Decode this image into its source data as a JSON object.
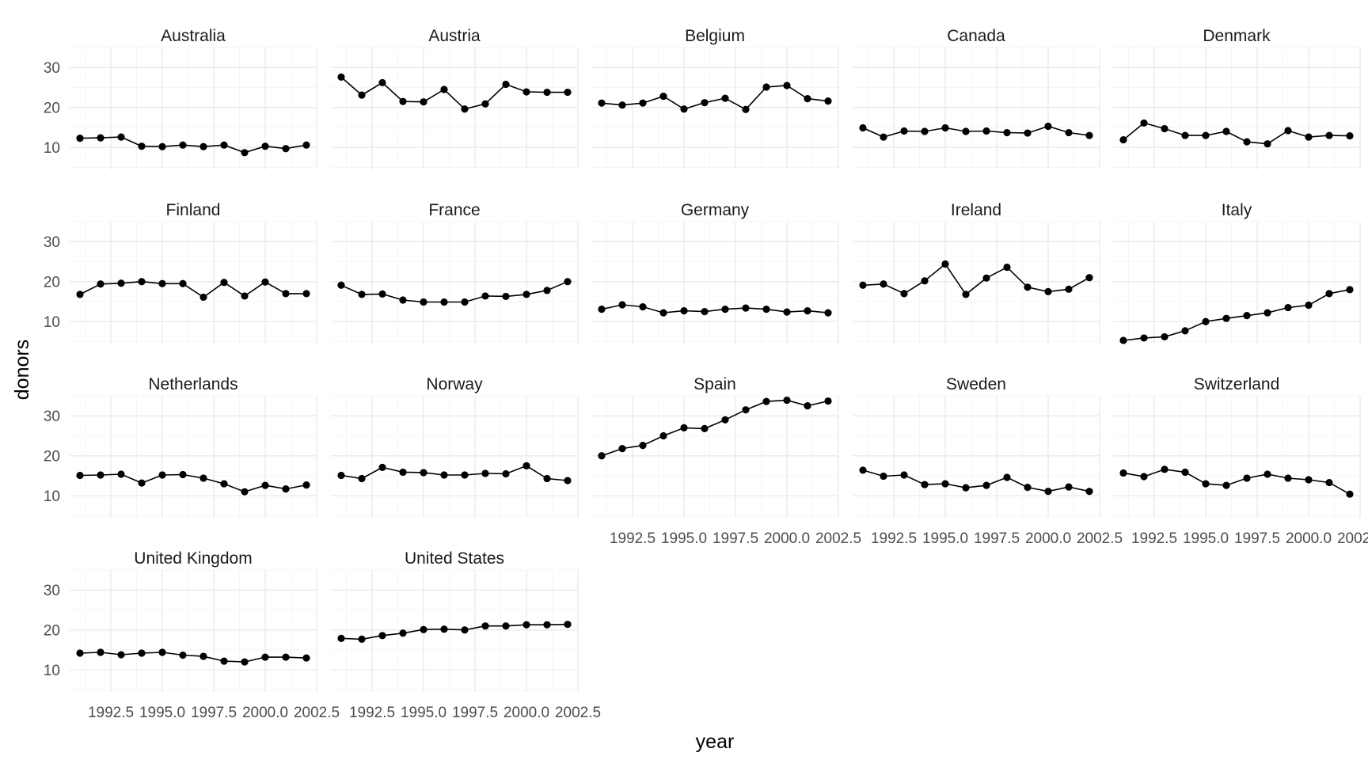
{
  "chart_data": {
    "type": "line",
    "facet_layout": "wrap 5 columns",
    "xlabel": "year",
    "ylabel": "donors",
    "xlim": [
      1990.5,
      2002.5
    ],
    "ylim": [
      4.5,
      35
    ],
    "x_ticks": [
      1992.5,
      1995.0,
      1997.5,
      2000.0,
      2002.5
    ],
    "x_tick_labels": [
      "1992.5",
      "1995.0",
      "1997.5",
      "2000.0",
      "2002.5"
    ],
    "y_ticks": [
      10,
      20,
      30
    ],
    "y_tick_labels": [
      "10",
      "20",
      "30"
    ],
    "grid": true,
    "point_color": "#000000",
    "x": [
      1991,
      1992,
      1993,
      1994,
      1995,
      1996,
      1997,
      1998,
      1999,
      2000,
      2001,
      2002
    ],
    "series": [
      {
        "name": "Australia",
        "values": [
          12.3,
          12.4,
          12.6,
          10.3,
          10.2,
          10.6,
          10.2,
          10.6,
          8.7,
          10.3,
          9.7,
          10.6
        ]
      },
      {
        "name": "Austria",
        "values": [
          27.6,
          23.1,
          26.2,
          21.5,
          21.4,
          24.5,
          19.6,
          20.9,
          25.8,
          23.9,
          23.8,
          23.8
        ]
      },
      {
        "name": "Belgium",
        "values": [
          21.1,
          20.6,
          21.1,
          22.8,
          19.6,
          21.2,
          22.3,
          19.5,
          25.1,
          25.5,
          22.2,
          21.6
        ]
      },
      {
        "name": "Canada",
        "values": [
          14.9,
          12.6,
          14.1,
          14.0,
          14.9,
          14.0,
          14.1,
          13.7,
          13.6,
          15.3,
          13.7,
          13.0
        ]
      },
      {
        "name": "Denmark",
        "values": [
          11.9,
          16.1,
          14.7,
          13.0,
          13.0,
          14.0,
          11.4,
          10.9,
          14.2,
          12.6,
          13.0,
          12.9
        ]
      },
      {
        "name": "Finland",
        "values": [
          16.8,
          19.4,
          19.6,
          20.0,
          19.5,
          19.5,
          16.1,
          19.8,
          16.4,
          19.9,
          17.0,
          17.0
        ]
      },
      {
        "name": "France",
        "values": [
          19.1,
          16.8,
          16.9,
          15.4,
          14.9,
          14.9,
          14.9,
          16.4,
          16.3,
          16.8,
          17.8,
          20.0
        ]
      },
      {
        "name": "Germany",
        "values": [
          13.1,
          14.2,
          13.7,
          12.2,
          12.7,
          12.5,
          13.1,
          13.4,
          13.1,
          12.4,
          12.7,
          12.2
        ]
      },
      {
        "name": "Ireland",
        "values": [
          19.1,
          19.4,
          17.0,
          20.2,
          24.4,
          16.8,
          20.9,
          23.6,
          18.6,
          17.5,
          18.1,
          21.0
        ]
      },
      {
        "name": "Italy",
        "values": [
          5.3,
          5.9,
          6.2,
          7.7,
          10.0,
          10.8,
          11.5,
          12.2,
          13.5,
          14.1,
          17.0,
          18.0
        ]
      },
      {
        "name": "Netherlands",
        "values": [
          15.1,
          15.2,
          15.4,
          13.2,
          15.2,
          15.3,
          14.4,
          13.0,
          11.0,
          12.6,
          11.7,
          12.7
        ]
      },
      {
        "name": "Norway",
        "values": [
          15.1,
          14.3,
          17.1,
          15.9,
          15.8,
          15.2,
          15.2,
          15.6,
          15.5,
          17.5,
          14.3,
          13.8
        ]
      },
      {
        "name": "Spain",
        "values": [
          20.0,
          21.8,
          22.6,
          25.0,
          27.0,
          26.8,
          29.0,
          31.5,
          33.6,
          33.9,
          32.5,
          33.7
        ]
      },
      {
        "name": "Sweden",
        "values": [
          16.4,
          14.9,
          15.2,
          12.8,
          13.0,
          12.0,
          12.6,
          14.6,
          12.1,
          11.1,
          12.2,
          11.1
        ]
      },
      {
        "name": "Switzerland",
        "values": [
          15.7,
          14.8,
          16.6,
          15.9,
          13.0,
          12.6,
          14.4,
          15.4,
          14.4,
          14.0,
          13.3,
          10.4
        ]
      },
      {
        "name": "United Kingdom",
        "values": [
          14.2,
          14.4,
          13.8,
          14.2,
          14.4,
          13.7,
          13.4,
          12.2,
          12.0,
          13.2,
          13.2,
          13.0
        ]
      },
      {
        "name": "United States",
        "values": [
          17.9,
          17.7,
          18.6,
          19.2,
          20.1,
          20.2,
          20.0,
          21.0,
          21.0,
          21.3,
          21.3,
          21.4
        ]
      }
    ]
  }
}
